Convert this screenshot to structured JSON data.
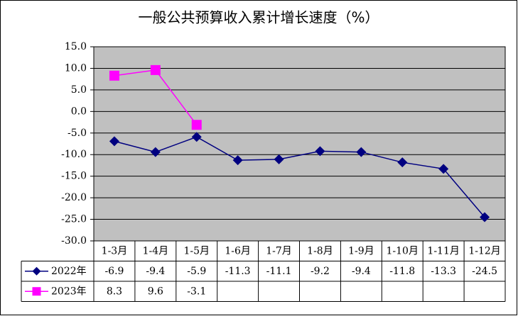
{
  "chart_data": {
    "type": "line",
    "title": "一般公共预算收入累计增长速度（%）",
    "categories": [
      "1-3月",
      "1-4月",
      "1-5月",
      "1-6月",
      "1-7月",
      "1-8月",
      "1-9月",
      "1-10月",
      "1-11月",
      "1-12月"
    ],
    "series": [
      {
        "name": "2022年",
        "color": "#000080",
        "marker": "diamond",
        "values": [
          -6.9,
          -9.4,
          -5.9,
          -11.3,
          -11.1,
          -9.2,
          -9.4,
          -11.8,
          -13.3,
          -24.5
        ]
      },
      {
        "name": "2023年",
        "color": "#ff00ff",
        "marker": "square",
        "values": [
          8.3,
          9.6,
          -3.1,
          null,
          null,
          null,
          null,
          null,
          null,
          null
        ]
      }
    ],
    "ylim": [
      -30,
      15
    ],
    "yticks": [
      {
        "value": 15,
        "label": "15.0"
      },
      {
        "value": 10,
        "label": "10.0"
      },
      {
        "value": 5,
        "label": "5.0"
      },
      {
        "value": 0,
        "label": "0.0"
      },
      {
        "value": -5,
        "label": "-5.0"
      },
      {
        "value": -10,
        "label": "-10.0"
      },
      {
        "value": -15,
        "label": "-15.0"
      },
      {
        "value": -20,
        "label": "-20.0"
      },
      {
        "value": -25,
        "label": "-25.0"
      },
      {
        "value": -30,
        "label": "-30.0"
      }
    ],
    "grid": true,
    "plot_background": "#c0c0c0",
    "data_table": true
  }
}
